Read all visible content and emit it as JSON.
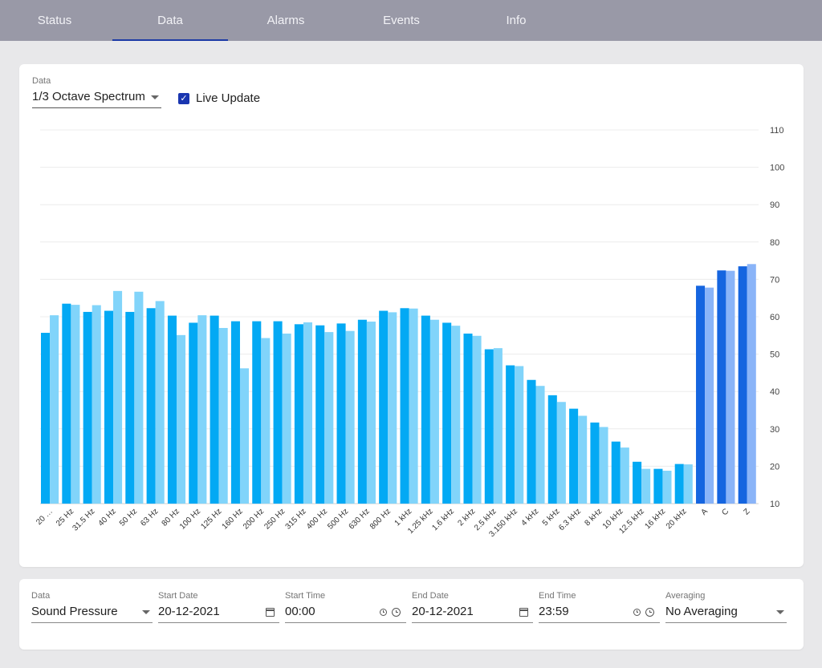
{
  "tabs": [
    {
      "label": "Status",
      "active": false
    },
    {
      "label": "Data",
      "active": true
    },
    {
      "label": "Alarms",
      "active": false
    },
    {
      "label": "Events",
      "active": false
    },
    {
      "label": "Info",
      "active": false
    }
  ],
  "top_panel": {
    "data_label": "Data",
    "data_value": "1/3 Octave Spectrum",
    "live_update_label": "Live Update",
    "live_update_checked": true
  },
  "colors": {
    "series_a": "#03a9f4",
    "series_b": "#81d4fa",
    "weighted_a": "#1565e0",
    "weighted_b": "#8ab4f8",
    "tab_active_underline": "#1c3aa5",
    "checkbox": "#1a36b0"
  },
  "chart_data": {
    "type": "bar",
    "categories": [
      "20 …",
      "25 Hz",
      "31.5 Hz",
      "40 Hz",
      "50 Hz",
      "63 Hz",
      "80 Hz",
      "100 Hz",
      "125 Hz",
      "160 Hz",
      "200 Hz",
      "250 Hz",
      "315 Hz",
      "400 Hz",
      "500 Hz",
      "630 Hz",
      "800 Hz",
      "1 kHz",
      "1.25 kHz",
      "1.6 kHz",
      "2 kHz",
      "2.5 kHz",
      "3.150 kHz",
      "4 kHz",
      "5 kHz",
      "6.3 kHz",
      "8 kHz",
      "10 kHz",
      "12.5 kHz",
      "16 kHz",
      "20 kHz",
      "A",
      "C",
      "Z"
    ],
    "series": [
      {
        "values": [
          55.7,
          63.5,
          61.3,
          61.6,
          61.3,
          62.3,
          60.3,
          58.4,
          60.3,
          58.8,
          58.8,
          58.8,
          58.0,
          57.7,
          58.2,
          59.2,
          61.6,
          62.3,
          60.3,
          58.4,
          55.5,
          51.3,
          47.0,
          43.1,
          39.0,
          35.4,
          31.7,
          26.6,
          21.2,
          19.3,
          20.6,
          68.3,
          72.4,
          73.5
        ]
      },
      {
        "values": [
          60.4,
          63.2,
          63.1,
          66.9,
          66.7,
          64.2,
          55.1,
          60.4,
          57.0,
          46.2,
          54.3,
          55.5,
          58.5,
          55.9,
          56.2,
          58.7,
          61.2,
          62.2,
          59.2,
          57.6,
          54.9,
          51.6,
          46.8,
          41.5,
          37.2,
          33.5,
          30.5,
          25.0,
          19.3,
          18.8,
          20.5,
          67.8,
          72.3,
          74.1
        ]
      }
    ],
    "y_ticks": [
      10,
      20,
      30,
      40,
      50,
      60,
      70,
      80,
      90,
      100,
      110
    ],
    "ylim": [
      10,
      110
    ],
    "grid": true,
    "y_axis_side": "right"
  },
  "bottom_panel": {
    "data": {
      "label": "Data",
      "value": "Sound Pressure"
    },
    "start_date": {
      "label": "Start Date",
      "value": "20-12-2021"
    },
    "start_time": {
      "label": "Start Time",
      "value": "00:00"
    },
    "end_date": {
      "label": "End Date",
      "value": "20-12-2021"
    },
    "end_time": {
      "label": "End Time",
      "value": "23:59"
    },
    "averaging": {
      "label": "Averaging",
      "value": "No Averaging"
    }
  }
}
